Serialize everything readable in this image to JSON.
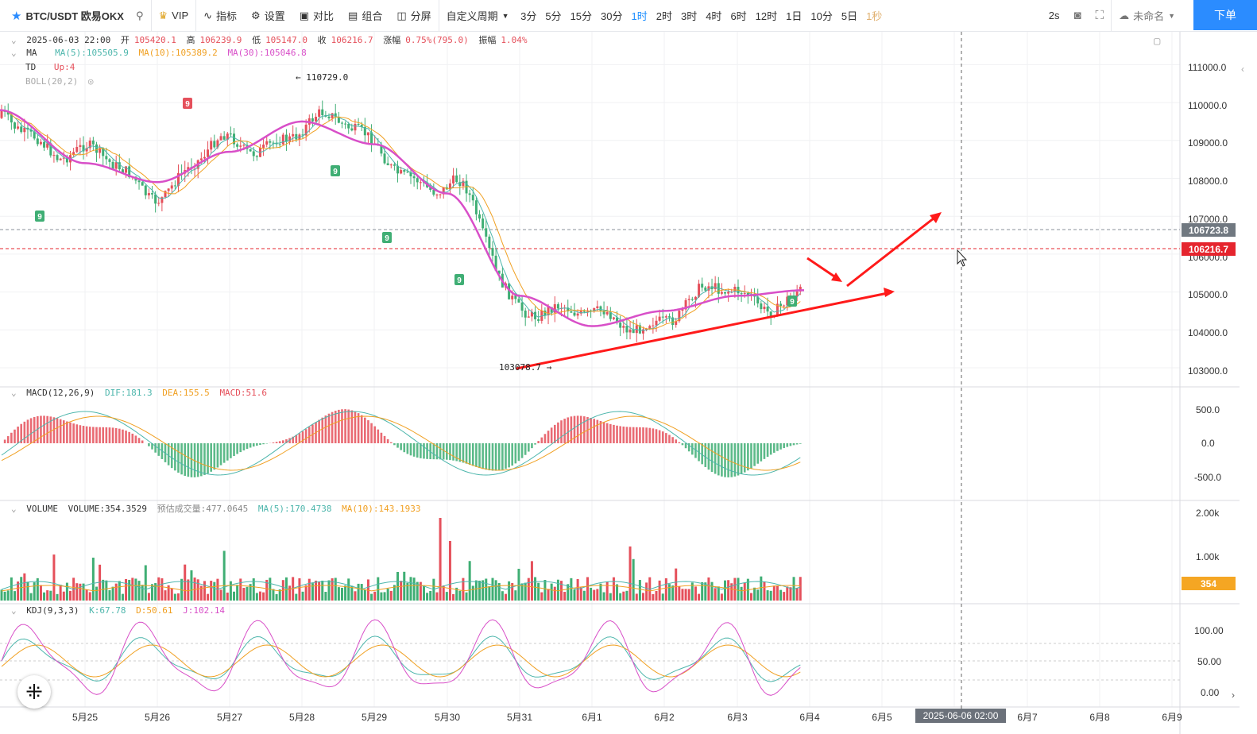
{
  "toolbar": {
    "symbol": "BTC/USDT 欧易OKX",
    "vip": "VIP",
    "indicators": "指标",
    "settings": "设置",
    "compare": "对比",
    "combo": "组合",
    "split": "分屏",
    "custom_period": "自定义周期",
    "timeframes": [
      "3分",
      "5分",
      "15分",
      "30分",
      "1时",
      "2时",
      "3时",
      "4时",
      "6时",
      "12时",
      "1日",
      "10分",
      "5日",
      "1秒"
    ],
    "active_timeframe": "1时",
    "interval": "2s",
    "layout_name": "未命名",
    "order_button": "下单"
  },
  "legend": {
    "date": "2025-06-03 22:00",
    "open_label": "开",
    "open": "105420.1",
    "high_label": "高",
    "high": "106239.9",
    "low_label": "低",
    "low": "105147.0",
    "close_label": "收",
    "close": "106216.7",
    "change_label": "涨幅",
    "change": "0.75%(795.0)",
    "amp_label": "振幅",
    "amp": "1.04%",
    "ma_name": "MA",
    "ma5": "MA(5):105505.9",
    "ma10": "MA(10):105389.2",
    "ma30": "MA(30):105046.8",
    "td_name": "TD",
    "td_value": "Up:4",
    "boll": "BOLL(20,2)"
  },
  "annotations": {
    "high_marker": "← 110729.0",
    "low_marker": "103078.7 →",
    "td_mark": "9"
  },
  "price_axis": [
    "111000.0",
    "110000.0",
    "109000.0",
    "108000.0",
    "107000.0",
    "106000.0",
    "105000.0",
    "104000.0",
    "103000.0"
  ],
  "price_tags": {
    "level": "106723.8",
    "last": "106216.7"
  },
  "macd": {
    "name": "MACD(12,26,9)",
    "dif": "DIF:181.3",
    "dea": "DEA:155.5",
    "macd": "MACD:51.6",
    "axis": [
      "500.0",
      "0.0",
      "-500.0"
    ]
  },
  "volume": {
    "name": "VOLUME",
    "value": "VOLUME:354.3529",
    "est": "预估成交量:477.0645",
    "ma5": "MA(5):170.4738",
    "ma10": "MA(10):143.1933",
    "axis": [
      "2.00k",
      "1.00k"
    ],
    "tag": "354"
  },
  "kdj": {
    "name": "KDJ(9,3,3)",
    "k": "K:67.78",
    "d": "D:50.61",
    "j": "J:102.14",
    "axis": [
      "100.00",
      "50.00",
      "0.00"
    ]
  },
  "time_axis": [
    "5月25",
    "5月26",
    "5月27",
    "5月28",
    "5月29",
    "5月30",
    "5月31",
    "6月1",
    "6月2",
    "6月3",
    "6月4",
    "6月5",
    "6月7",
    "6月8",
    "6月9"
  ],
  "crosshair_time": "2025-06-06 02:00",
  "colors": {
    "up": "#e5505b",
    "down": "#3fae74",
    "accent": "#2b8cff",
    "ma30": "#d84fc8",
    "ma10": "#f0a022",
    "ma5": "#4db6ac",
    "drawing": "#ff1a1a"
  },
  "chart_data": {
    "type": "line",
    "title": "BTC/USDT 1H",
    "x": [
      "5月25",
      "5月26",
      "5月27",
      "5月28",
      "5月29",
      "5月30",
      "5月31",
      "6月1",
      "6月2",
      "6月3",
      "6月4"
    ],
    "series": [
      {
        "name": "MA(30)",
        "values": [
          108400,
          107900,
          108700,
          109500,
          108900,
          107600,
          104900,
          104100,
          104500,
          104900,
          105046.8
        ]
      }
    ],
    "ylim": [
      102600,
      111600
    ],
    "session_high": 110729.0,
    "session_low": 103078.7,
    "last": 106216.7
  }
}
